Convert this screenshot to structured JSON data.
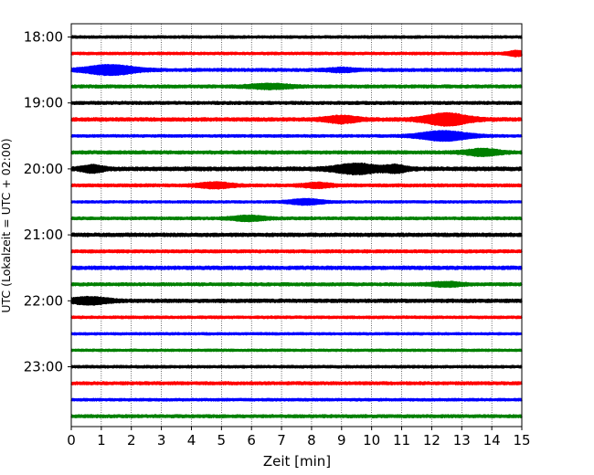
{
  "chart_data": {
    "type": "line",
    "title": "",
    "xlabel": "Zeit  [min]",
    "ylabel": "UTC (Lokalzeit = UTC + 02:00)",
    "xlim": [
      0,
      15
    ],
    "x_ticks": [
      "0",
      "1",
      "2",
      "3",
      "4",
      "5",
      "6",
      "7",
      "8",
      "9",
      "10",
      "11",
      "12",
      "13",
      "14",
      "15"
    ],
    "y_ticks": [
      "18:00",
      "19:00",
      "20:00",
      "21:00",
      "22:00",
      "23:00"
    ],
    "grid": "vertical dotted at each minute",
    "legend": "none",
    "color_cycle": [
      "#000000",
      "#ff0000",
      "#0000ff",
      "#008000"
    ],
    "trace_interval_min": 15,
    "traces": [
      {
        "label": "18:00",
        "base": 1.0,
        "events": []
      },
      {
        "label": "18:15",
        "base": 1.0,
        "events": [
          {
            "t": 14.8,
            "amp": 2.2,
            "width": 0.3
          }
        ]
      },
      {
        "label": "18:30",
        "base": 1.2,
        "events": [
          {
            "t": 1.3,
            "amp": 4.5,
            "width": 0.9
          },
          {
            "t": 9.0,
            "amp": 1.6,
            "width": 0.5
          }
        ]
      },
      {
        "label": "18:45",
        "base": 1.2,
        "events": [
          {
            "t": 6.6,
            "amp": 2.0,
            "width": 0.8
          }
        ]
      },
      {
        "label": "19:00",
        "base": 1.2,
        "events": []
      },
      {
        "label": "19:15",
        "base": 1.4,
        "events": [
          {
            "t": 9.0,
            "amp": 3.0,
            "width": 0.6
          },
          {
            "t": 12.5,
            "amp": 5.5,
            "width": 0.8
          }
        ]
      },
      {
        "label": "19:30",
        "base": 1.0,
        "events": [
          {
            "t": 12.4,
            "amp": 4.5,
            "width": 0.9
          }
        ]
      },
      {
        "label": "19:45",
        "base": 1.3,
        "events": [
          {
            "t": 13.7,
            "amp": 3.0,
            "width": 0.6
          }
        ]
      },
      {
        "label": "20:00",
        "base": 1.5,
        "events": [
          {
            "t": 0.7,
            "amp": 3.0,
            "width": 0.4
          },
          {
            "t": 9.5,
            "amp": 4.5,
            "width": 0.8
          },
          {
            "t": 10.8,
            "amp": 3.0,
            "width": 0.4
          }
        ]
      },
      {
        "label": "20:15",
        "base": 1.2,
        "events": [
          {
            "t": 4.8,
            "amp": 2.5,
            "width": 0.6
          },
          {
            "t": 8.2,
            "amp": 2.0,
            "width": 0.5
          }
        ]
      },
      {
        "label": "20:30",
        "base": 0.9,
        "events": [
          {
            "t": 7.8,
            "amp": 2.5,
            "width": 0.6
          }
        ]
      },
      {
        "label": "20:45",
        "base": 1.1,
        "events": [
          {
            "t": 5.9,
            "amp": 2.2,
            "width": 0.6
          }
        ]
      },
      {
        "label": "21:00",
        "base": 1.4,
        "events": []
      },
      {
        "label": "21:15",
        "base": 1.2,
        "events": []
      },
      {
        "label": "21:30",
        "base": 1.4,
        "events": []
      },
      {
        "label": "21:45",
        "base": 1.2,
        "events": [
          {
            "t": 12.5,
            "amp": 1.8,
            "width": 0.6
          }
        ]
      },
      {
        "label": "22:00",
        "base": 1.4,
        "events": [
          {
            "t": 0.6,
            "amp": 3.0,
            "width": 0.7
          }
        ]
      },
      {
        "label": "22:15",
        "base": 1.0,
        "events": []
      },
      {
        "label": "22:30",
        "base": 0.9,
        "events": []
      },
      {
        "label": "22:45",
        "base": 0.9,
        "events": []
      },
      {
        "label": "23:00",
        "base": 1.0,
        "events": []
      },
      {
        "label": "23:15",
        "base": 1.2,
        "events": []
      },
      {
        "label": "23:30",
        "base": 1.0,
        "events": []
      },
      {
        "label": "23:45",
        "base": 1.2,
        "events": []
      }
    ]
  }
}
